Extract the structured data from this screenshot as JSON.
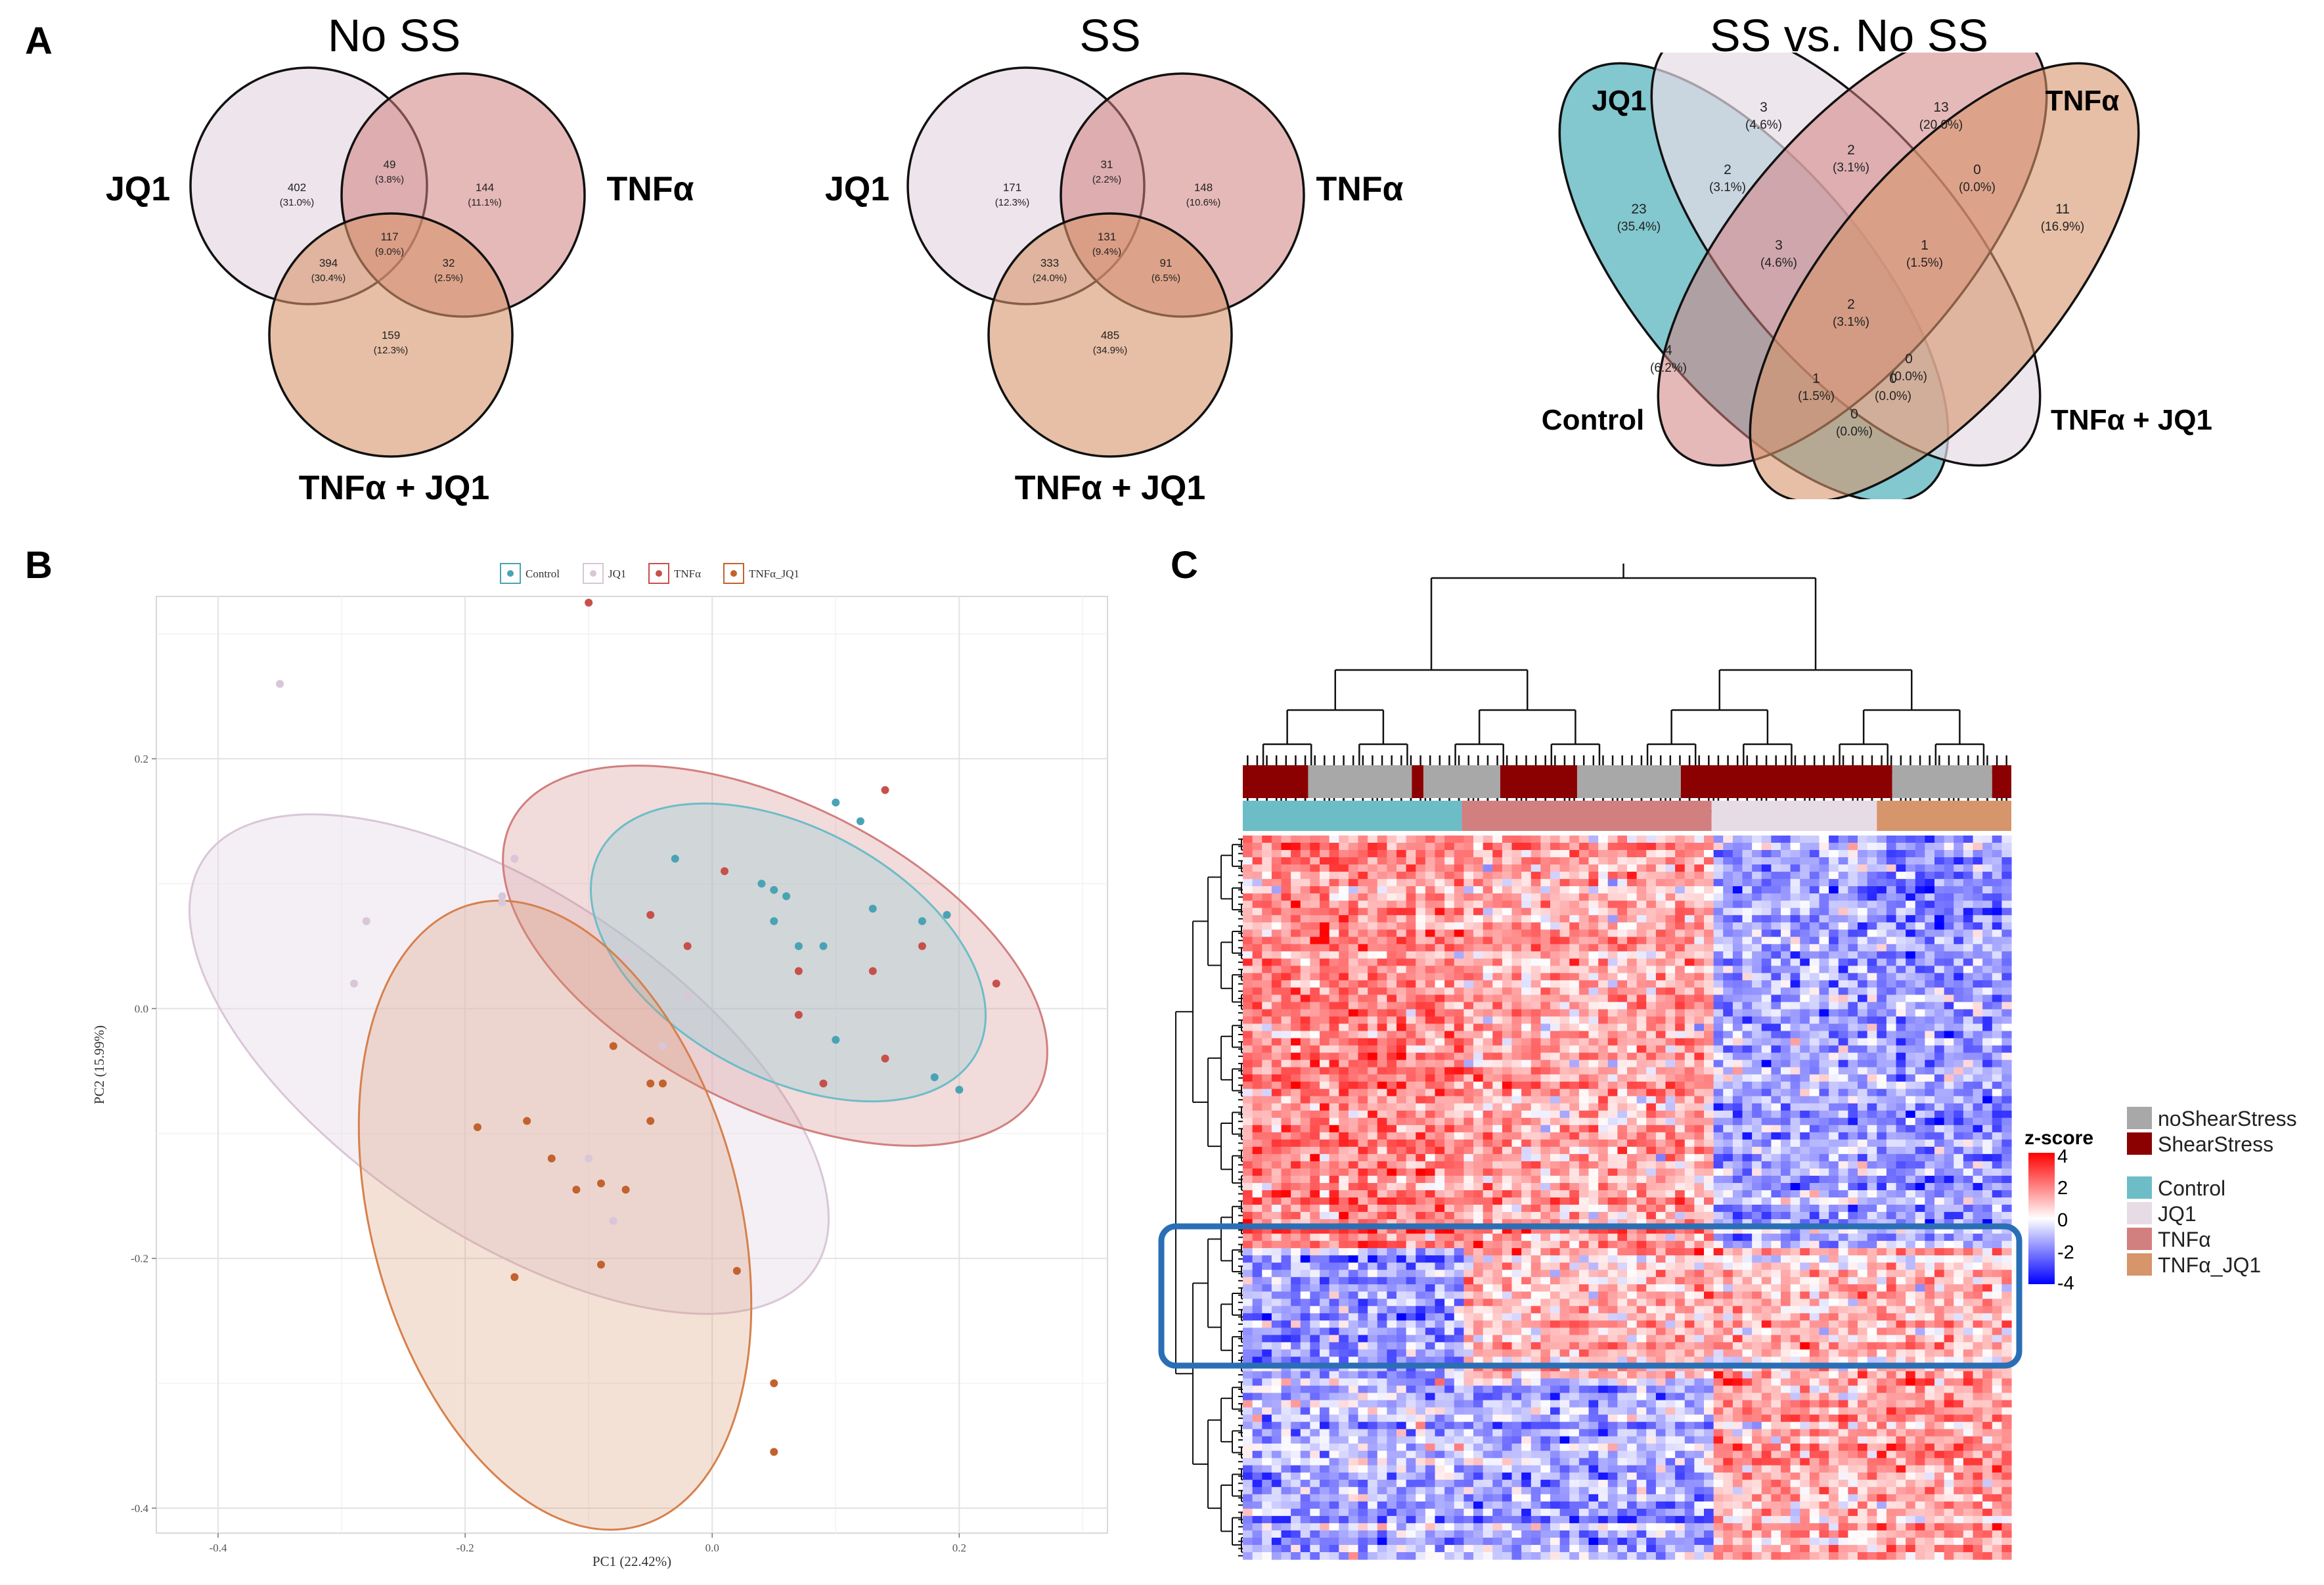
{
  "panels": {
    "a": "A",
    "b": "B",
    "c": "C"
  },
  "colors": {
    "control": "#6dbdc7",
    "jq1": "#e7dbe6",
    "tnfa": "#d27f7f",
    "tnfa_jq1": "#d7956b",
    "noShearStress": "#a8a8a8",
    "shearStress": "#8b0000",
    "box": "#2a6fb5"
  },
  "venn_no_ss": {
    "title": "No SS",
    "labels": {
      "jq1": "JQ1",
      "tnfa": "TNFα",
      "tnfa_jq1": "TNFα + JQ1"
    },
    "regions": [
      {
        "count": "402",
        "pct": "(31.0%)"
      },
      {
        "count": "49",
        "pct": "(3.8%)"
      },
      {
        "count": "144",
        "pct": "(11.1%)"
      },
      {
        "count": "117",
        "pct": "(9.0%)"
      },
      {
        "count": "394",
        "pct": "(30.4%)"
      },
      {
        "count": "32",
        "pct": "(2.5%)"
      },
      {
        "count": "159",
        "pct": "(12.3%)"
      }
    ]
  },
  "venn_ss": {
    "title": "SS",
    "labels": {
      "jq1": "JQ1",
      "tnfa": "TNFα",
      "tnfa_jq1": "TNFα + JQ1"
    },
    "regions": [
      {
        "count": "171",
        "pct": "(12.3%)"
      },
      {
        "count": "31",
        "pct": "(2.2%)"
      },
      {
        "count": "148",
        "pct": "(10.6%)"
      },
      {
        "count": "131",
        "pct": "(9.4%)"
      },
      {
        "count": "333",
        "pct": "(24.0%)"
      },
      {
        "count": "91",
        "pct": "(6.5%)"
      },
      {
        "count": "485",
        "pct": "(34.9%)"
      }
    ]
  },
  "venn_ss_vs_no_ss": {
    "title": "SS vs. No SS",
    "labels": {
      "jq1": "JQ1",
      "tnfa": "TNFα",
      "control": "Control",
      "tnfa_jq1": "TNFα + JQ1"
    },
    "regions": [
      {
        "count": "3",
        "pct": "(4.6%)"
      },
      {
        "count": "13",
        "pct": "(20.0%)"
      },
      {
        "count": "2",
        "pct": "(3.1%)"
      },
      {
        "count": "2",
        "pct": "(3.1%)"
      },
      {
        "count": "0",
        "pct": "(0.0%)"
      },
      {
        "count": "23",
        "pct": "(35.4%)"
      },
      {
        "count": "11",
        "pct": "(16.9%)"
      },
      {
        "count": "3",
        "pct": "(4.6%)"
      },
      {
        "count": "1",
        "pct": "(1.5%)"
      },
      {
        "count": "2",
        "pct": "(3.1%)"
      },
      {
        "count": "4",
        "pct": "(6.2%)"
      },
      {
        "count": "0",
        "pct": "(0.0%)"
      },
      {
        "count": "1",
        "pct": "(1.5%)"
      },
      {
        "count": "0",
        "pct": "(0.0%)"
      },
      {
        "count": "0",
        "pct": "(0.0%)"
      }
    ]
  },
  "chart_data": {
    "type": "scatter",
    "title": "",
    "xlabel": "PC1 (22.42%)",
    "ylabel": "PC2 (15.99%)",
    "xlim": [
      -0.45,
      0.32
    ],
    "ylim": [
      -0.42,
      0.33
    ],
    "xticks": [
      -0.4,
      -0.2,
      0.0,
      0.2
    ],
    "yticks": [
      0.2,
      0.0,
      -0.2,
      -0.4
    ],
    "xtick_labels": [
      "-0.4",
      "-0.2",
      "0.0",
      "0.2"
    ],
    "ytick_labels": [
      "0.2",
      "0.0",
      "-0.2",
      "-0.4"
    ],
    "legend": [
      "Control",
      "JQ1",
      "TNFα",
      "TNFα_JQ1"
    ],
    "series": [
      {
        "name": "Control",
        "color": "#4aa3b5",
        "x": [
          0.1,
          0.12,
          -0.03,
          0.04,
          0.05,
          0.06,
          0.05,
          0.07,
          0.09,
          0.13,
          0.17,
          0.19,
          0.1,
          0.18,
          0.2
        ],
        "y": [
          0.165,
          0.15,
          0.12,
          0.1,
          0.095,
          0.09,
          0.07,
          0.05,
          0.05,
          0.08,
          0.07,
          0.075,
          -0.025,
          -0.055,
          -0.065
        ]
      },
      {
        "name": "JQ1",
        "color": "#d9c6d8",
        "x": [
          -0.35,
          -0.28,
          -0.29,
          -0.17,
          -0.16,
          -0.17,
          -0.07,
          -0.02,
          -0.04,
          -0.1,
          -0.08
        ],
        "y": [
          0.26,
          0.07,
          0.02,
          0.09,
          0.12,
          0.085,
          0.04,
          0.01,
          -0.03,
          -0.12,
          -0.17
        ]
      },
      {
        "name": "TNFα",
        "color": "#c8504a",
        "x": [
          -0.1,
          0.14,
          0.01,
          -0.05,
          -0.02,
          0.07,
          0.13,
          0.23,
          0.17,
          0.07,
          0.14,
          0.09
        ],
        "y": [
          0.325,
          0.175,
          0.11,
          0.075,
          0.05,
          0.03,
          0.03,
          0.02,
          0.05,
          -0.005,
          -0.04,
          -0.06
        ]
      },
      {
        "name": "TNFα_JQ1",
        "color": "#c2622e",
        "x": [
          -0.08,
          -0.05,
          -0.04,
          -0.05,
          -0.19,
          -0.15,
          -0.13,
          -0.11,
          -0.09,
          -0.07,
          -0.16,
          -0.09,
          0.02,
          0.05,
          0.05
        ],
        "y": [
          -0.03,
          -0.06,
          -0.06,
          -0.09,
          -0.095,
          -0.09,
          -0.12,
          -0.145,
          -0.14,
          -0.145,
          -0.215,
          -0.205,
          -0.21,
          -0.3,
          -0.355
        ]
      }
    ]
  },
  "heatmap": {
    "colorbar_title": "z-score",
    "colorbar_ticks": [
      "4",
      "2",
      "0",
      "-2",
      "-4"
    ],
    "legend": [
      {
        "label": "noShearStress",
        "color": "#a8a8a8"
      },
      {
        "label": "ShearStress",
        "color": "#8b0000"
      },
      {
        "label": "Control",
        "color": "#6dbdc7"
      },
      {
        "label": "JQ1",
        "color": "#e7dbe6"
      },
      {
        "label": "TNFα",
        "color": "#d27f7f"
      },
      {
        "label": "TNFα_JQ1",
        "color": "#d7956b"
      }
    ],
    "annotation_stress": [
      "ShearStress",
      "noShearStress",
      "ShearStress",
      "noShearStress",
      "ShearStress",
      "noShearStress",
      "ShearStress",
      "noShearStress",
      "ShearStress"
    ],
    "annotation_group": [
      "Control",
      "TNFα",
      "JQ1",
      "TNFα_JQ1"
    ]
  }
}
